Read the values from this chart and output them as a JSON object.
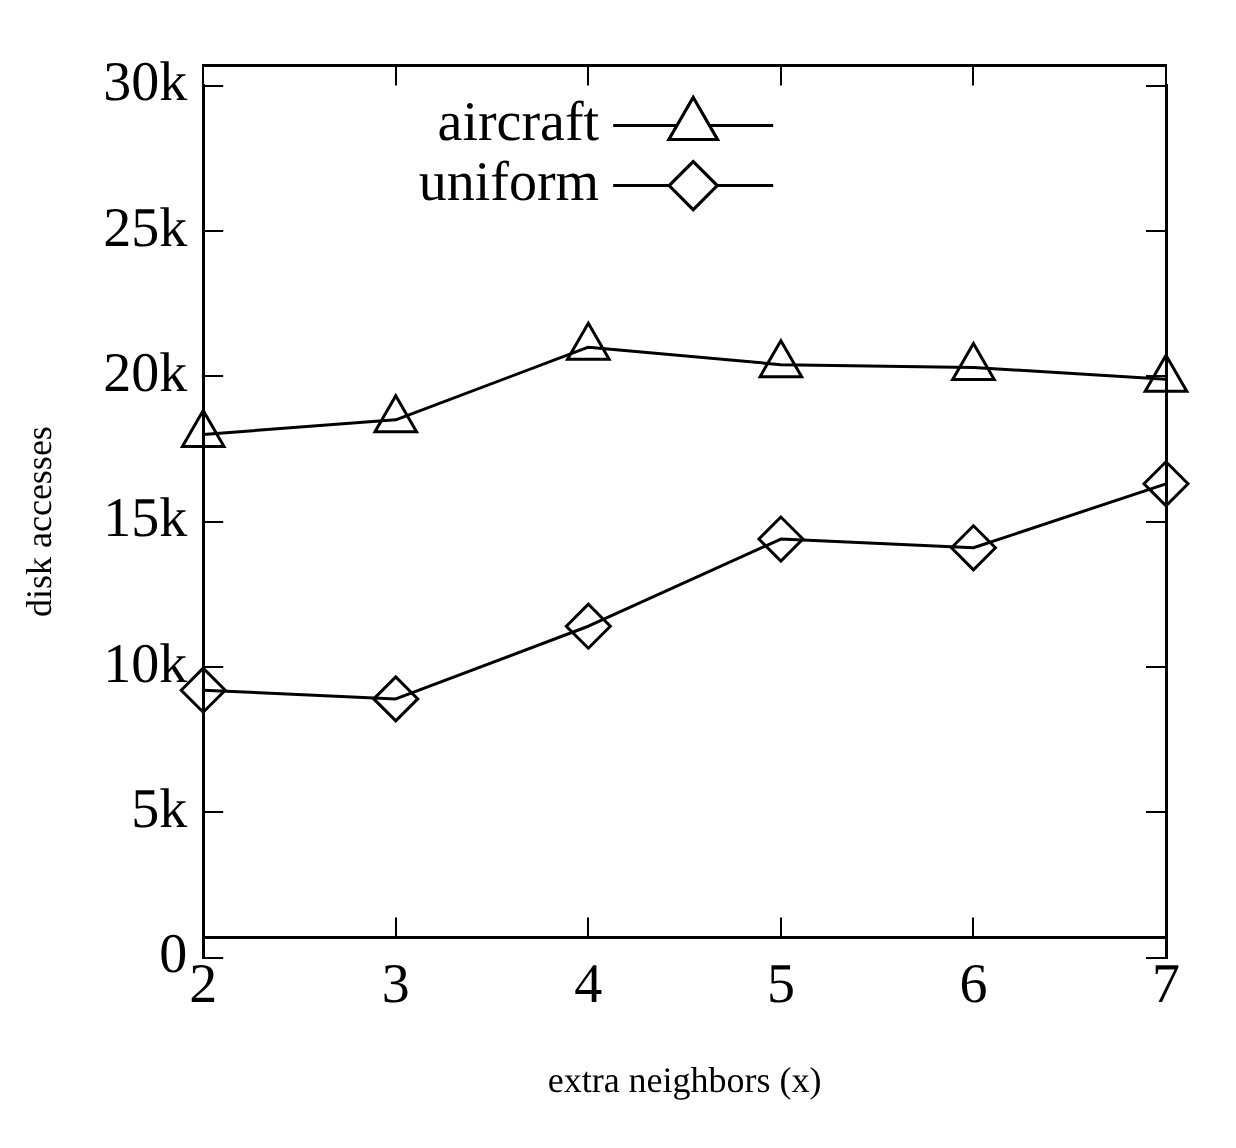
{
  "chart_data": {
    "type": "line",
    "xlabel": "extra neighbors (x)",
    "ylabel": "disk accesses",
    "x": [
      2,
      3,
      4,
      5,
      6,
      7
    ],
    "series": [
      {
        "name": "aircraft",
        "color": "#000000",
        "marker": "triangle",
        "values": [
          18000,
          18500,
          21000,
          20400,
          20300,
          19900
        ]
      },
      {
        "name": "uniform",
        "color": "#000000",
        "marker": "diamond",
        "values": [
          9200,
          8900,
          11400,
          14400,
          14100,
          16300
        ]
      }
    ],
    "xlim": [
      2,
      7
    ],
    "xticks": [
      2,
      3,
      4,
      5,
      6,
      7
    ],
    "ylim": [
      0,
      30000
    ],
    "yticks": [
      0,
      {
        "value": 5000,
        "label": "5k"
      },
      {
        "value": 10000,
        "label": "10k"
      },
      {
        "value": 15000,
        "label": "15k"
      },
      {
        "value": 20000,
        "label": "20k"
      },
      {
        "value": 25000,
        "label": "25k"
      },
      {
        "value": 30000,
        "label": "30k"
      }
    ],
    "grid": false,
    "legend": "top left",
    "line_style": "solid"
  }
}
